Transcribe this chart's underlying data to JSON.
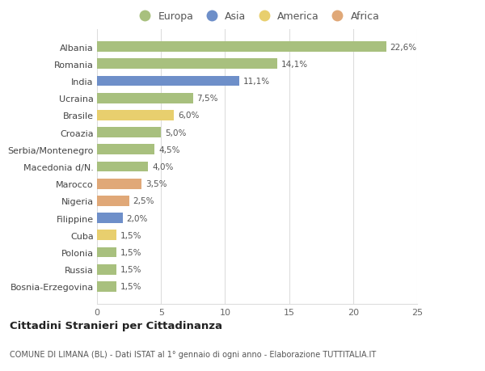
{
  "countries": [
    "Albania",
    "Romania",
    "India",
    "Ucraina",
    "Brasile",
    "Croazia",
    "Serbia/Montenegro",
    "Macedonia d/N.",
    "Marocco",
    "Nigeria",
    "Filippine",
    "Cuba",
    "Polonia",
    "Russia",
    "Bosnia-Erzegovina"
  ],
  "values": [
    22.6,
    14.1,
    11.1,
    7.5,
    6.0,
    5.0,
    4.5,
    4.0,
    3.5,
    2.5,
    2.0,
    1.5,
    1.5,
    1.5,
    1.5
  ],
  "labels": [
    "22,6%",
    "14,1%",
    "11,1%",
    "7,5%",
    "6,0%",
    "5,0%",
    "4,5%",
    "4,0%",
    "3,5%",
    "2,5%",
    "2,0%",
    "1,5%",
    "1,5%",
    "1,5%",
    "1,5%"
  ],
  "continents": [
    "Europa",
    "Europa",
    "Asia",
    "Europa",
    "America",
    "Europa",
    "Europa",
    "Europa",
    "Africa",
    "Africa",
    "Asia",
    "America",
    "Europa",
    "Europa",
    "Europa"
  ],
  "colors": {
    "Europa": "#a8c07e",
    "Asia": "#6e8fc9",
    "America": "#e8cf6e",
    "Africa": "#e0a878"
  },
  "background_color": "#ffffff",
  "grid_color": "#dddddd",
  "title": "Cittadini Stranieri per Cittadinanza",
  "subtitle": "COMUNE DI LIMANA (BL) - Dati ISTAT al 1° gennaio di ogni anno - Elaborazione TUTTITALIA.IT",
  "xlim": [
    0,
    25
  ],
  "xticks": [
    0,
    5,
    10,
    15,
    20,
    25
  ],
  "legend_order": [
    "Europa",
    "Asia",
    "America",
    "Africa"
  ]
}
